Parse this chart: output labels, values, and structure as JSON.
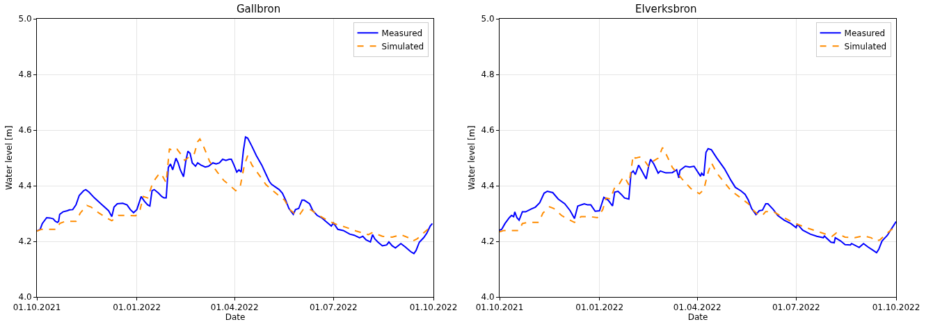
{
  "chart_data": [
    {
      "type": "line",
      "title": "Gallbron",
      "xlabel": "Date",
      "ylabel": "Water level [m]",
      "xlim": [
        "2021-10-01",
        "2022-10-01"
      ],
      "xticks": [
        {
          "value": "2021-10-01",
          "label": "01.10.2021"
        },
        {
          "value": "2022-01-01",
          "label": "01.01.2022"
        },
        {
          "value": "2022-04-01",
          "label": "01.04.2022"
        },
        {
          "value": "2022-07-01",
          "label": "01.07.2022"
        },
        {
          "value": "2022-10-01",
          "label": "01.10.2022"
        }
      ],
      "ylim": [
        4.0,
        5.0
      ],
      "yticks": [
        {
          "value": 4.0,
          "label": "4.0"
        },
        {
          "value": 4.2,
          "label": "4.2"
        },
        {
          "value": 4.4,
          "label": "4.4"
        },
        {
          "value": 4.6,
          "label": "4.6"
        },
        {
          "value": 4.8,
          "label": "4.8"
        },
        {
          "value": 5.0,
          "label": "5.0"
        }
      ],
      "grid": true,
      "legend": "top right",
      "series": [
        {
          "name": "Measured",
          "color": "#0000ff",
          "line_style": "solid",
          "x": [
            "2021-10-01",
            "2021-10-04",
            "2021-10-06",
            "2021-10-10",
            "2021-10-13",
            "2021-10-16",
            "2021-10-18",
            "2021-10-20",
            "2021-10-21",
            "2021-10-22",
            "2021-10-25",
            "2021-10-29",
            "2021-10-31",
            "2021-11-03",
            "2021-11-06",
            "2021-11-09",
            "2021-11-13",
            "2021-11-15",
            "2021-11-18",
            "2021-11-23",
            "2021-11-30",
            "2021-12-06",
            "2021-12-09",
            "2021-12-11",
            "2021-12-14",
            "2021-12-19",
            "2021-12-23",
            "2021-12-26",
            "2021-12-29",
            "2022-01-01",
            "2022-01-05",
            "2022-01-08",
            "2022-01-11",
            "2022-01-13",
            "2022-01-15",
            "2022-01-17",
            "2022-01-21",
            "2022-01-24",
            "2022-01-26",
            "2022-01-28",
            "2022-01-30",
            "2022-02-01",
            "2022-02-03",
            "2022-02-06",
            "2022-02-08",
            "2022-02-10",
            "2022-02-13",
            "2022-02-15",
            "2022-02-17",
            "2022-02-19",
            "2022-02-21",
            "2022-02-24",
            "2022-02-26",
            "2022-03-01",
            "2022-03-05",
            "2022-03-08",
            "2022-03-12",
            "2022-03-15",
            "2022-03-18",
            "2022-03-21",
            "2022-03-24",
            "2022-03-27",
            "2022-03-29",
            "2022-03-31",
            "2022-04-03",
            "2022-04-05",
            "2022-04-07",
            "2022-04-09",
            "2022-04-11",
            "2022-04-13",
            "2022-04-17",
            "2022-04-21",
            "2022-04-26",
            "2022-04-30",
            "2022-05-03",
            "2022-05-05",
            "2022-05-09",
            "2022-05-12",
            "2022-05-15",
            "2022-05-18",
            "2022-05-21",
            "2022-05-25",
            "2022-05-27",
            "2022-05-30",
            "2022-06-02",
            "2022-06-04",
            "2022-06-09",
            "2022-06-12",
            "2022-06-16",
            "2022-06-20",
            "2022-06-25",
            "2022-06-29",
            "2022-07-01",
            "2022-07-05",
            "2022-07-10",
            "2022-07-16",
            "2022-07-20",
            "2022-07-25",
            "2022-07-28",
            "2022-07-31",
            "2022-08-04",
            "2022-08-06",
            "2022-08-08",
            "2022-08-11",
            "2022-08-15",
            "2022-08-19",
            "2022-08-21",
            "2022-08-24",
            "2022-08-27",
            "2022-09-01",
            "2022-09-05",
            "2022-09-10",
            "2022-09-13",
            "2022-09-15",
            "2022-09-18",
            "2022-09-22",
            "2022-09-25",
            "2022-09-28",
            "2022-09-30"
          ],
          "values": [
            4.237,
            4.243,
            4.264,
            4.285,
            4.284,
            4.281,
            4.272,
            4.268,
            4.272,
            4.297,
            4.306,
            4.31,
            4.313,
            4.314,
            4.331,
            4.365,
            4.382,
            4.386,
            4.377,
            4.356,
            4.331,
            4.31,
            4.289,
            4.323,
            4.335,
            4.337,
            4.331,
            4.314,
            4.303,
            4.314,
            4.361,
            4.344,
            4.331,
            4.327,
            4.382,
            4.386,
            4.373,
            4.361,
            4.356,
            4.356,
            4.466,
            4.478,
            4.457,
            4.499,
            4.482,
            4.457,
            4.432,
            4.487,
            4.524,
            4.516,
            4.482,
            4.47,
            4.482,
            4.474,
            4.467,
            4.47,
            4.482,
            4.478,
            4.482,
            4.495,
            4.491,
            4.495,
            4.495,
            4.478,
            4.449,
            4.457,
            4.449,
            4.524,
            4.575,
            4.571,
            4.541,
            4.508,
            4.474,
            4.44,
            4.415,
            4.405,
            4.394,
            4.386,
            4.373,
            4.348,
            4.318,
            4.297,
            4.314,
            4.318,
            4.348,
            4.348,
            4.335,
            4.31,
            4.293,
            4.285,
            4.268,
            4.255,
            4.266,
            4.243,
            4.239,
            4.226,
            4.222,
            4.213,
            4.218,
            4.205,
            4.198,
            4.224,
            4.209,
            4.197,
            4.184,
            4.187,
            4.198,
            4.184,
            4.176,
            4.192,
            4.18,
            4.163,
            4.156,
            4.167,
            4.197,
            4.213,
            4.23,
            4.255,
            4.264
          ]
        },
        {
          "name": "Simulated",
          "color": "#ff8c00",
          "line_style": "dashed",
          "x": [
            "2021-10-01",
            "2021-10-05",
            "2021-10-12",
            "2021-10-19",
            "2021-10-22",
            "2021-10-27",
            "2021-11-06",
            "2021-11-10",
            "2021-11-16",
            "2021-11-20",
            "2021-11-27",
            "2021-12-04",
            "2021-12-09",
            "2021-12-15",
            "2021-12-23",
            "2021-12-31",
            "2022-01-04",
            "2022-01-07",
            "2022-01-11",
            "2022-01-15",
            "2022-01-18",
            "2022-01-22",
            "2022-01-25",
            "2022-01-28",
            "2022-01-31",
            "2022-02-03",
            "2022-02-07",
            "2022-02-10",
            "2022-02-14",
            "2022-02-18",
            "2022-02-23",
            "2022-02-26",
            "2022-02-28",
            "2022-03-03",
            "2022-03-09",
            "2022-03-16",
            "2022-03-22",
            "2022-03-27",
            "2022-04-02",
            "2022-04-06",
            "2022-04-10",
            "2022-04-13",
            "2022-04-17",
            "2022-04-24",
            "2022-04-30",
            "2022-05-09",
            "2022-05-17",
            "2022-05-22",
            "2022-05-28",
            "2022-05-31",
            "2022-06-03",
            "2022-06-10",
            "2022-06-16",
            "2022-06-25",
            "2022-07-03",
            "2022-07-12",
            "2022-07-22",
            "2022-08-02",
            "2022-08-06",
            "2022-08-15",
            "2022-08-24",
            "2022-09-01",
            "2022-09-08",
            "2022-09-12",
            "2022-09-16",
            "2022-09-23",
            "2022-09-28",
            "2022-10-01"
          ],
          "values": [
            4.237,
            4.243,
            4.243,
            4.243,
            4.264,
            4.272,
            4.272,
            4.302,
            4.329,
            4.323,
            4.302,
            4.285,
            4.274,
            4.293,
            4.293,
            4.292,
            4.314,
            4.361,
            4.356,
            4.403,
            4.424,
            4.445,
            4.432,
            4.411,
            4.533,
            4.524,
            4.531,
            4.516,
            4.491,
            4.503,
            4.516,
            4.558,
            4.568,
            4.545,
            4.487,
            4.449,
            4.419,
            4.403,
            4.382,
            4.394,
            4.474,
            4.508,
            4.474,
            4.436,
            4.403,
            4.373,
            4.348,
            4.314,
            4.293,
            4.297,
            4.314,
            4.314,
            4.297,
            4.276,
            4.262,
            4.251,
            4.237,
            4.224,
            4.232,
            4.218,
            4.215,
            4.224,
            4.213,
            4.201,
            4.209,
            4.234,
            4.251,
            4.251
          ]
        }
      ]
    },
    {
      "type": "line",
      "title": "Elverksbron",
      "xlabel": "Date",
      "ylabel": "Water level [m]",
      "xlim": [
        "2021-10-01",
        "2022-10-01"
      ],
      "xticks": [
        {
          "value": "2021-10-01",
          "label": "01.10.2021"
        },
        {
          "value": "2022-01-01",
          "label": "01.01.2022"
        },
        {
          "value": "2022-04-01",
          "label": "01.04.2022"
        },
        {
          "value": "2022-07-01",
          "label": "01.07.2022"
        },
        {
          "value": "2022-10-01",
          "label": "01.10.2022"
        }
      ],
      "ylim": [
        4.0,
        5.0
      ],
      "yticks": [
        {
          "value": 4.0,
          "label": "4.0"
        },
        {
          "value": 4.2,
          "label": "4.2"
        },
        {
          "value": 4.4,
          "label": "4.4"
        },
        {
          "value": 4.6,
          "label": "4.6"
        },
        {
          "value": 4.8,
          "label": "4.8"
        },
        {
          "value": 5.0,
          "label": "5.0"
        }
      ],
      "grid": true,
      "legend": "top right",
      "series": [
        {
          "name": "Measured",
          "color": "#0000ff",
          "line_style": "solid",
          "x": [
            "2021-10-01",
            "2021-10-03",
            "2021-10-06",
            "2021-10-10",
            "2021-10-12",
            "2021-10-14",
            "2021-10-15",
            "2021-10-17",
            "2021-10-19",
            "2021-10-22",
            "2021-10-25",
            "2021-10-30",
            "2021-11-03",
            "2021-11-07",
            "2021-11-11",
            "2021-11-14",
            "2021-11-19",
            "2021-11-24",
            "2021-11-30",
            "2021-12-05",
            "2021-12-09",
            "2021-12-12",
            "2021-12-18",
            "2021-12-21",
            "2021-12-24",
            "2021-12-28",
            "2022-01-01",
            "2022-01-05",
            "2022-01-09",
            "2022-01-13",
            "2022-01-15",
            "2022-01-18",
            "2022-01-21",
            "2022-01-24",
            "2022-01-28",
            "2022-01-30",
            "2022-02-01",
            "2022-02-03",
            "2022-02-06",
            "2022-02-09",
            "2022-02-13",
            "2022-02-15",
            "2022-02-17",
            "2022-02-20",
            "2022-02-24",
            "2022-02-26",
            "2022-03-03",
            "2022-03-09",
            "2022-03-13",
            "2022-03-15",
            "2022-03-16",
            "2022-03-21",
            "2022-03-25",
            "2022-03-29",
            "2022-04-04",
            "2022-04-05",
            "2022-04-07",
            "2022-04-09",
            "2022-04-11",
            "2022-04-14",
            "2022-04-19",
            "2022-04-26",
            "2022-05-02",
            "2022-05-06",
            "2022-05-11",
            "2022-05-15",
            "2022-05-18",
            "2022-05-21",
            "2022-05-25",
            "2022-05-28",
            "2022-05-31",
            "2022-06-03",
            "2022-06-05",
            "2022-06-10",
            "2022-06-14",
            "2022-06-20",
            "2022-06-26",
            "2022-07-01",
            "2022-07-02",
            "2022-07-07",
            "2022-07-14",
            "2022-07-20",
            "2022-07-26",
            "2022-07-27",
            "2022-08-02",
            "2022-08-05",
            "2022-08-06",
            "2022-08-11",
            "2022-08-15",
            "2022-08-20",
            "2022-08-21",
            "2022-08-28",
            "2022-09-01",
            "2022-09-05",
            "2022-09-10",
            "2022-09-13",
            "2022-09-15",
            "2022-09-18",
            "2022-09-23",
            "2022-09-27",
            "2022-10-01"
          ],
          "values": [
            4.24,
            4.243,
            4.264,
            4.285,
            4.293,
            4.289,
            4.306,
            4.285,
            4.276,
            4.306,
            4.306,
            4.316,
            4.323,
            4.339,
            4.373,
            4.38,
            4.375,
            4.352,
            4.335,
            4.31,
            4.282,
            4.327,
            4.335,
            4.331,
            4.331,
            4.308,
            4.31,
            4.358,
            4.348,
            4.327,
            4.377,
            4.38,
            4.369,
            4.356,
            4.352,
            4.445,
            4.453,
            4.44,
            4.474,
            4.453,
            4.424,
            4.466,
            4.495,
            4.478,
            4.445,
            4.453,
            4.446,
            4.447,
            4.457,
            4.428,
            4.455,
            4.47,
            4.467,
            4.47,
            4.434,
            4.445,
            4.436,
            4.52,
            4.533,
            4.529,
            4.499,
            4.461,
            4.419,
            4.394,
            4.382,
            4.369,
            4.348,
            4.318,
            4.296,
            4.31,
            4.312,
            4.335,
            4.335,
            4.314,
            4.293,
            4.276,
            4.264,
            4.249,
            4.262,
            4.24,
            4.226,
            4.218,
            4.213,
            4.219,
            4.197,
            4.195,
            4.213,
            4.201,
            4.188,
            4.187,
            4.192,
            4.178,
            4.192,
            4.18,
            4.167,
            4.159,
            4.171,
            4.201,
            4.222,
            4.247,
            4.271
          ]
        },
        {
          "name": "Simulated",
          "color": "#ff8c00",
          "line_style": "dashed",
          "x": [
            "2021-10-01",
            "2021-10-05",
            "2021-10-19",
            "2021-10-22",
            "2021-10-27",
            "2021-11-06",
            "2021-11-10",
            "2021-11-16",
            "2021-11-20",
            "2021-11-27",
            "2021-12-04",
            "2021-12-09",
            "2021-12-15",
            "2021-12-23",
            "2021-12-30",
            "2022-01-04",
            "2022-01-07",
            "2022-01-11",
            "2022-01-15",
            "2022-01-18",
            "2022-01-23",
            "2022-01-25",
            "2022-01-28",
            "2022-02-01",
            "2022-02-03",
            "2022-02-07",
            "2022-02-12",
            "2022-02-15",
            "2022-02-19",
            "2022-02-24",
            "2022-02-28",
            "2022-03-03",
            "2022-03-09",
            "2022-03-18",
            "2022-03-26",
            "2022-04-03",
            "2022-04-07",
            "2022-04-11",
            "2022-04-14",
            "2022-04-19",
            "2022-04-26",
            "2022-05-02",
            "2022-05-11",
            "2022-05-18",
            "2022-05-23",
            "2022-05-28",
            "2022-05-31",
            "2022-06-03",
            "2022-06-10",
            "2022-06-16",
            "2022-06-25",
            "2022-07-03",
            "2022-07-12",
            "2022-07-22",
            "2022-08-03",
            "2022-08-07",
            "2022-08-15",
            "2022-08-24",
            "2022-09-01",
            "2022-09-08",
            "2022-09-12",
            "2022-09-16",
            "2022-09-23",
            "2022-09-27",
            "2022-10-01"
          ],
          "values": [
            4.234,
            4.239,
            4.239,
            4.264,
            4.268,
            4.268,
            4.302,
            4.324,
            4.318,
            4.293,
            4.278,
            4.268,
            4.289,
            4.289,
            4.285,
            4.314,
            4.356,
            4.352,
            4.394,
            4.398,
            4.432,
            4.424,
            4.403,
            4.508,
            4.499,
            4.503,
            4.487,
            4.47,
            4.487,
            4.499,
            4.537,
            4.516,
            4.466,
            4.424,
            4.39,
            4.371,
            4.386,
            4.449,
            4.482,
            4.445,
            4.411,
            4.382,
            4.356,
            4.335,
            4.31,
            4.293,
            4.293,
            4.307,
            4.307,
            4.293,
            4.274,
            4.26,
            4.247,
            4.234,
            4.218,
            4.23,
            4.215,
            4.213,
            4.22,
            4.213,
            4.201,
            4.205,
            4.23,
            4.243,
            4.247
          ]
        }
      ]
    }
  ]
}
